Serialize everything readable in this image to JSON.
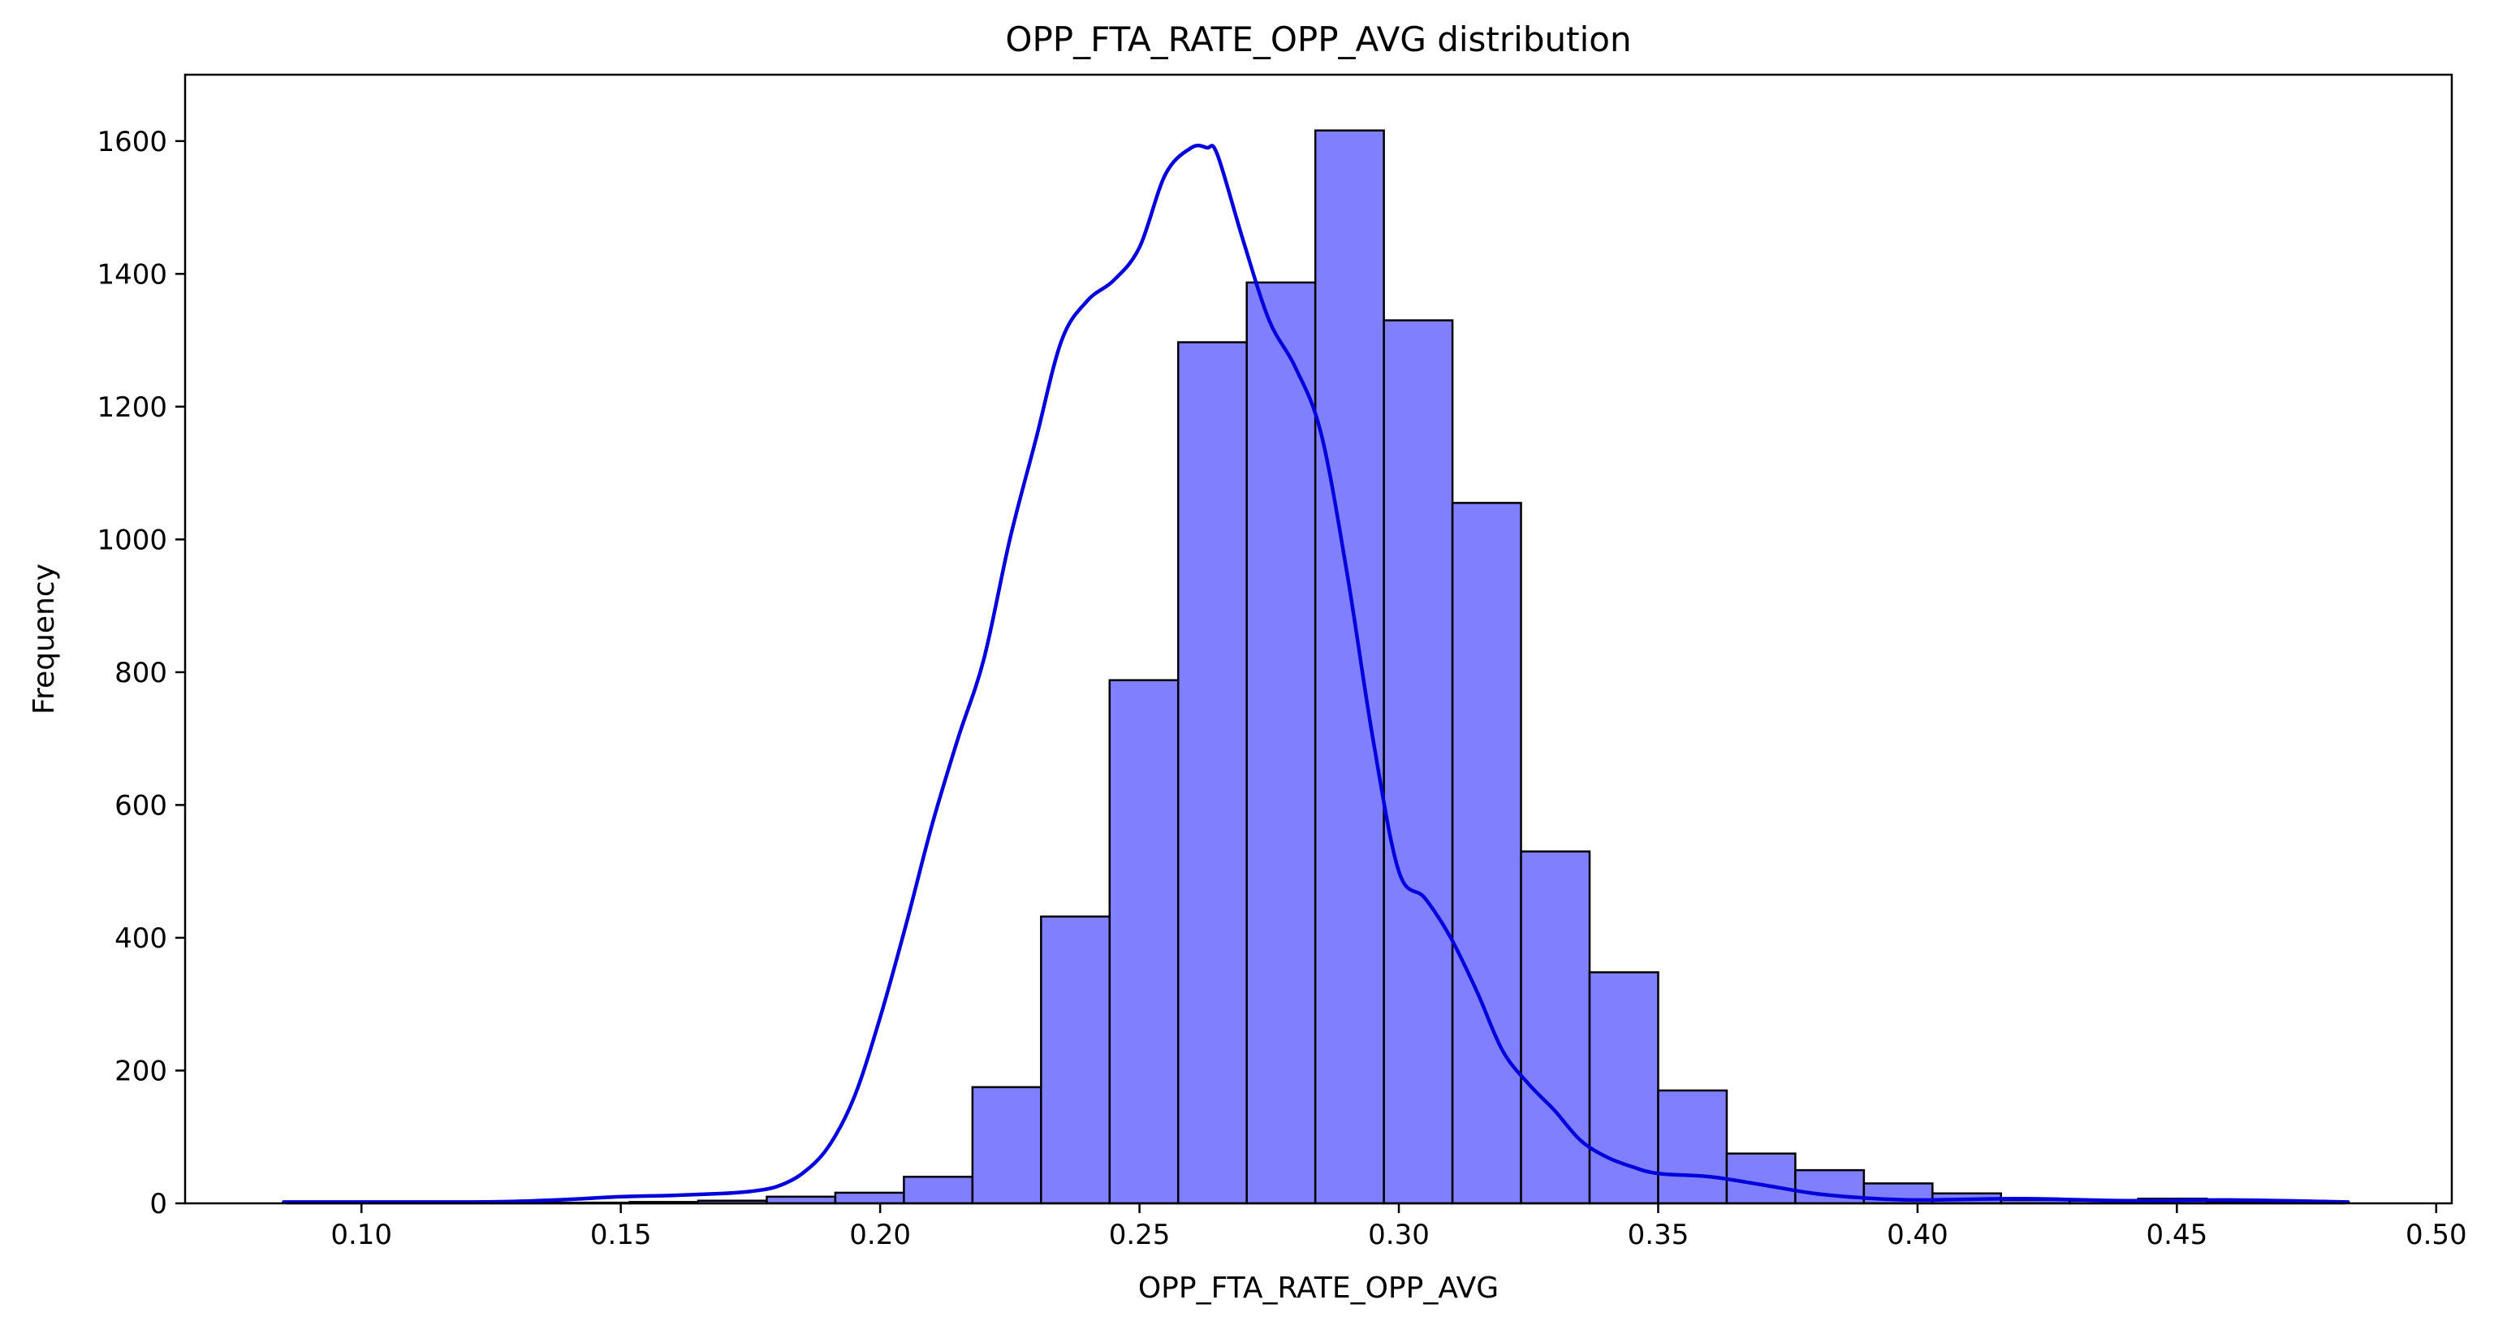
{
  "chart_data": {
    "type": "bar",
    "title": "OPP_FTA_RATE_OPP_AVG distribution",
    "xlabel": "OPP_FTA_RATE_OPP_AVG",
    "ylabel": "Frequency",
    "xlim": [
      0.066,
      0.503
    ],
    "ylim": [
      0,
      1700
    ],
    "grid": false,
    "bar_fill": "#8080ff",
    "bar_edge": "#000000",
    "kde_color": "#0000dd",
    "xticks": [
      "0.10",
      "0.15",
      "0.20",
      "0.25",
      "0.30",
      "0.35",
      "0.40",
      "0.45",
      "0.50"
    ],
    "xtick_values": [
      0.1,
      0.15,
      0.2,
      0.25,
      0.3,
      0.35,
      0.4,
      0.45,
      0.5
    ],
    "yticks": [
      "0",
      "200",
      "400",
      "600",
      "800",
      "1000",
      "1200",
      "1400",
      "1600"
    ],
    "ytick_values": [
      0,
      200,
      400,
      600,
      800,
      1000,
      1200,
      1400,
      1600
    ],
    "bin_start": 0.0856,
    "bin_width": 0.01322,
    "values": [
      2,
      1,
      1,
      1,
      1,
      2,
      4,
      10,
      16,
      40,
      175,
      432,
      788,
      1297,
      1387,
      1616,
      1330,
      1055,
      530,
      348,
      170,
      75,
      50,
      30,
      15,
      5,
      4,
      7,
      3,
      3
    ],
    "kde": {
      "x": [
        0.085,
        0.1,
        0.12,
        0.13,
        0.14,
        0.15,
        0.16,
        0.17,
        0.175,
        0.18,
        0.185,
        0.19,
        0.195,
        0.2,
        0.205,
        0.21,
        0.215,
        0.22,
        0.225,
        0.23,
        0.235,
        0.24,
        0.245,
        0.25,
        0.255,
        0.26,
        0.263,
        0.265,
        0.27,
        0.275,
        0.28,
        0.285,
        0.29,
        0.295,
        0.3,
        0.305,
        0.31,
        0.315,
        0.32,
        0.325,
        0.33,
        0.335,
        0.34,
        0.345,
        0.35,
        0.36,
        0.37,
        0.38,
        0.39,
        0.4,
        0.42,
        0.44,
        0.46,
        0.483
      ],
      "y": [
        2,
        2,
        2,
        3,
        6,
        10,
        12,
        15,
        18,
        25,
        45,
        85,
        160,
        280,
        420,
        570,
        700,
        820,
        1000,
        1150,
        1300,
        1360,
        1390,
        1440,
        1550,
        1590,
        1590,
        1580,
        1450,
        1330,
        1260,
        1160,
        950,
        700,
        500,
        460,
        400,
        320,
        230,
        180,
        140,
        95,
        70,
        55,
        45,
        40,
        28,
        15,
        8,
        5,
        7,
        4,
        5,
        2
      ]
    }
  }
}
